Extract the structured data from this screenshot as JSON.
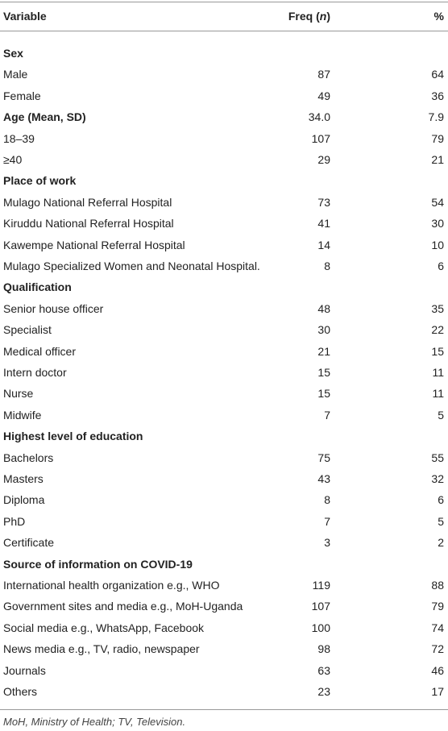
{
  "table": {
    "header": {
      "variable": "Variable",
      "freq": [
        "Freq (",
        "n",
        ")"
      ],
      "percent": "%"
    },
    "sections": [
      {
        "title": "Sex",
        "rows": [
          [
            "Male",
            "87",
            "64"
          ],
          [
            "Female",
            "49",
            "36"
          ]
        ]
      },
      {
        "title": "Age (Mean, SD)",
        "freq": "34.0",
        "percent": "7.9",
        "rows": [
          [
            "18–39",
            "107",
            "79"
          ],
          [
            "≥40",
            "29",
            "21"
          ]
        ]
      },
      {
        "title": "Place of work",
        "rows": [
          [
            "Mulago National Referral Hospital",
            "73",
            "54"
          ],
          [
            "Kiruddu National Referral Hospital",
            "41",
            "30"
          ],
          [
            "Kawempe National Referral Hospital",
            "14",
            "10"
          ],
          [
            "Mulago Specialized Women and Neonatal Hospital.",
            "8",
            "6"
          ]
        ]
      },
      {
        "title": "Qualification",
        "rows": [
          [
            "Senior house officer",
            "48",
            "35"
          ],
          [
            "Specialist",
            "30",
            "22"
          ],
          [
            "Medical officer",
            "21",
            "15"
          ],
          [
            "Intern doctor",
            "15",
            "11"
          ],
          [
            "Nurse",
            "15",
            "11"
          ],
          [
            "Midwife",
            "7",
            "5"
          ]
        ]
      },
      {
        "title": "Highest level of education",
        "rows": [
          [
            "Bachelors",
            "75",
            "55"
          ],
          [
            "Masters",
            "43",
            "32"
          ],
          [
            "Diploma",
            "8",
            "6"
          ],
          [
            "PhD",
            "7",
            "5"
          ],
          [
            "Certificate",
            "3",
            "2"
          ]
        ]
      },
      {
        "title": "Source of information on COVID-19",
        "rows": [
          [
            "International health organization e.g., WHO",
            "119",
            "88"
          ],
          [
            "Government sites and media e.g., MoH-Uganda",
            "107",
            "79"
          ],
          [
            "Social media e.g., WhatsApp, Facebook",
            "100",
            "74"
          ],
          [
            "News media e.g., TV, radio, newspaper",
            "98",
            "72"
          ],
          [
            "Journals",
            "63",
            "46"
          ],
          [
            "Others",
            "23",
            "17"
          ]
        ]
      }
    ],
    "footnote": "MoH, Ministry of Health; TV, Television."
  }
}
